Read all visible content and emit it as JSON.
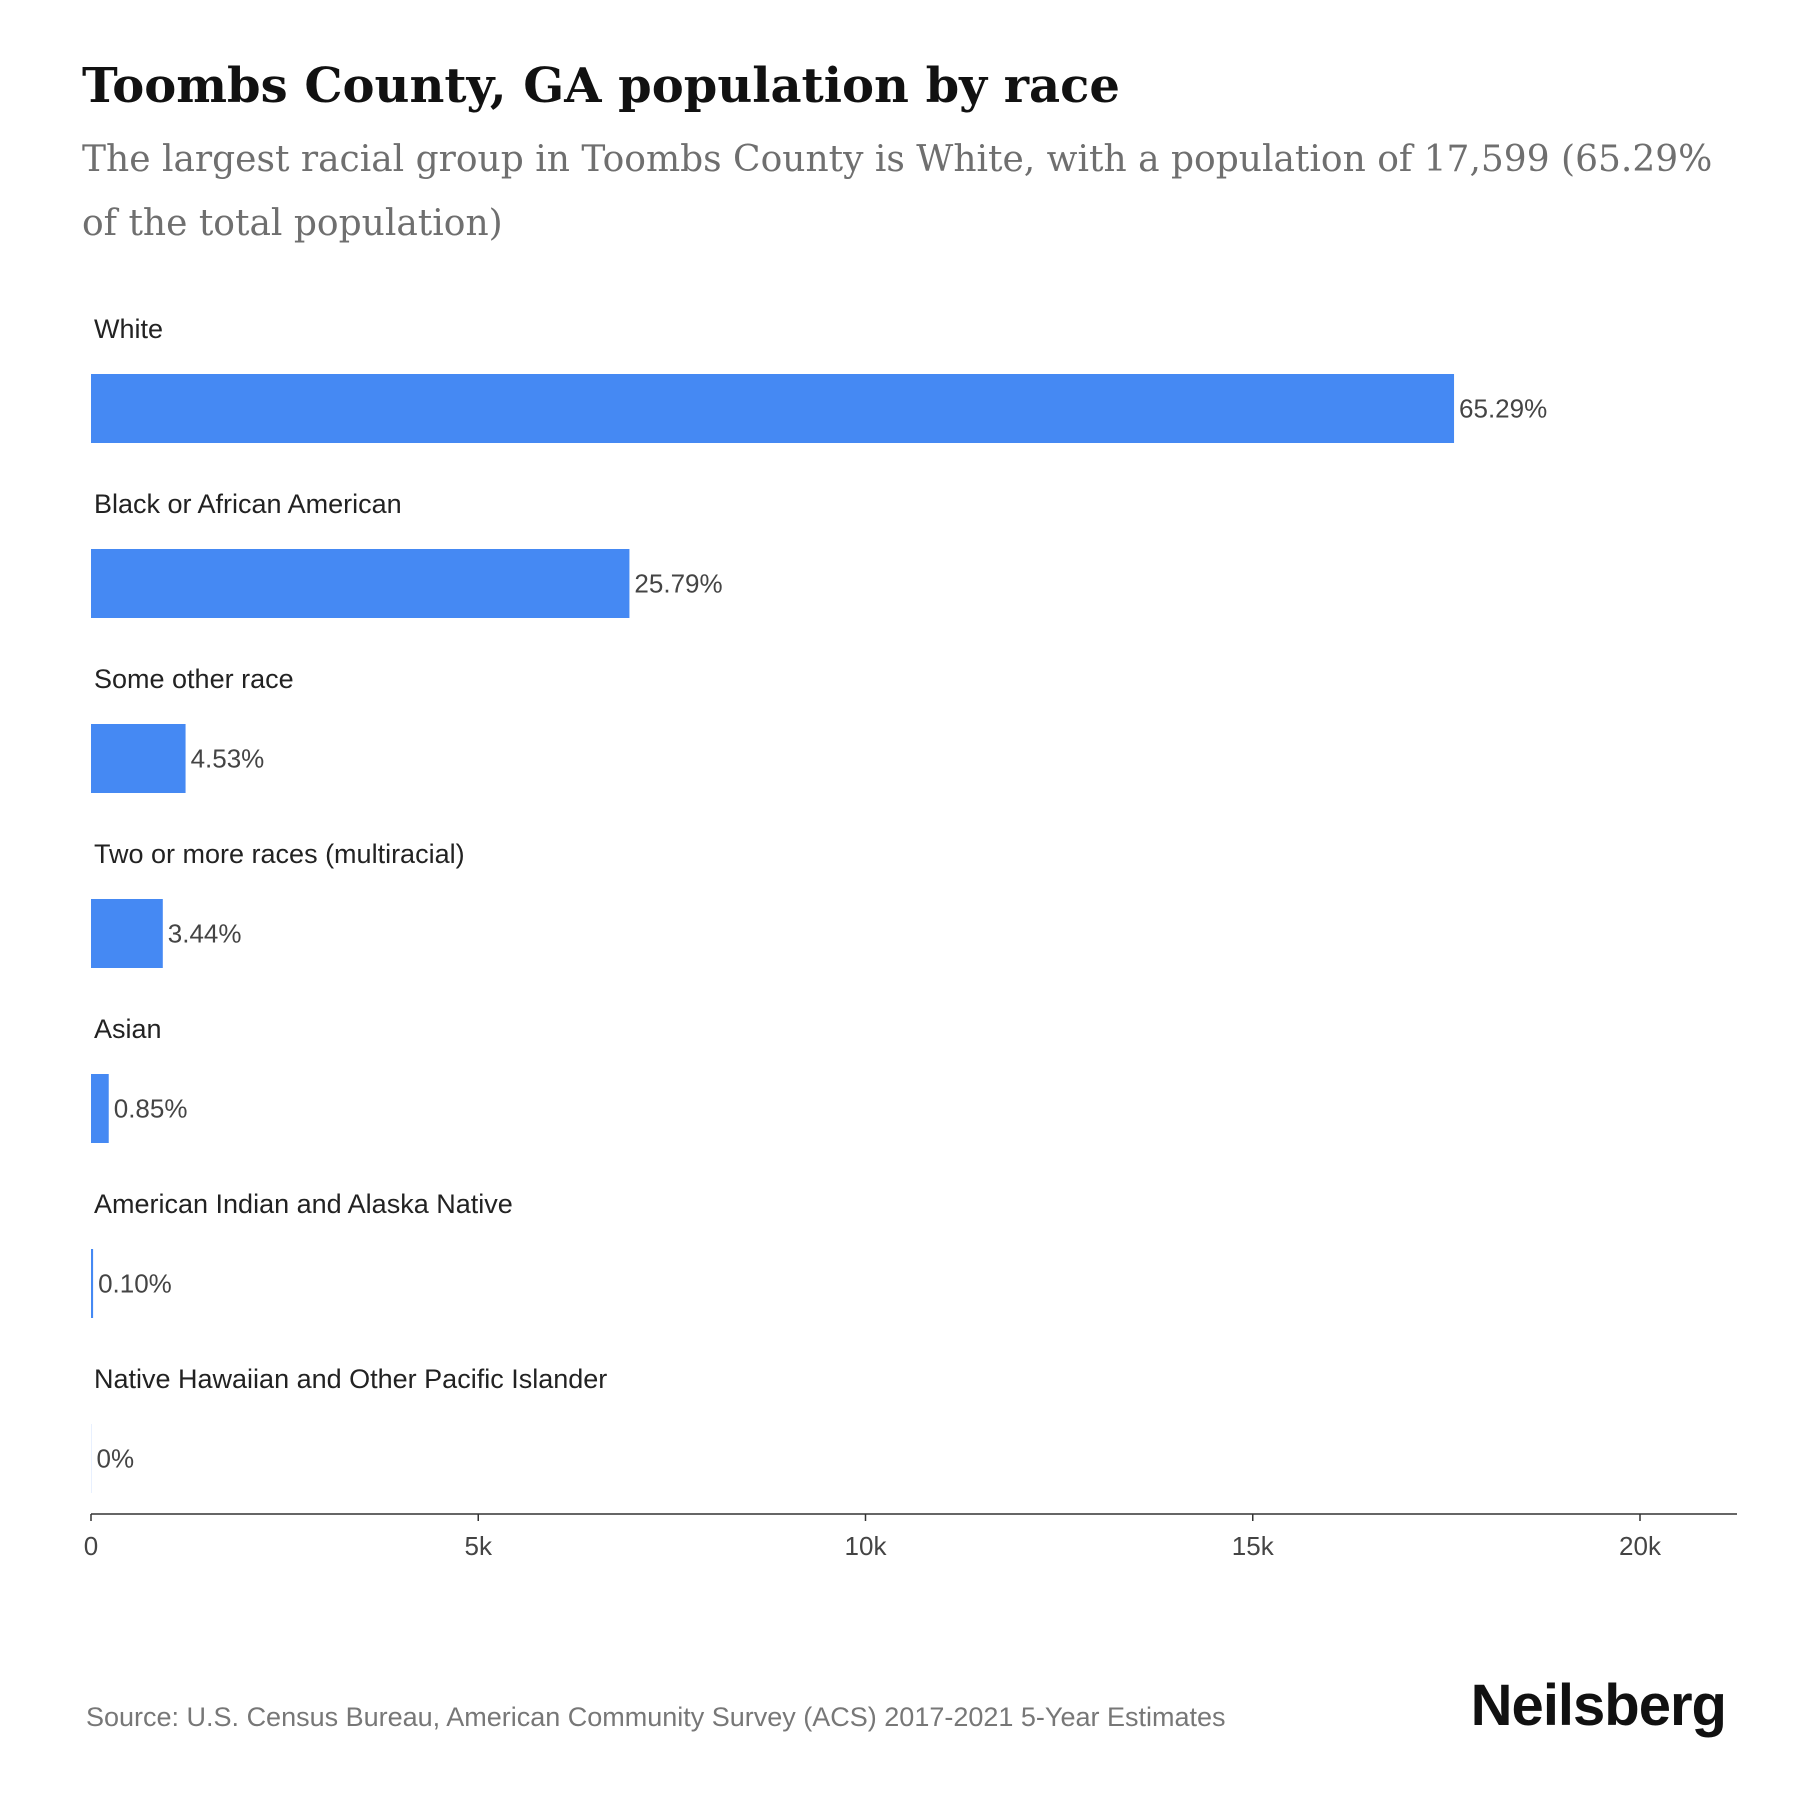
{
  "header": {
    "title": "Toombs County, GA population by race",
    "subtitle": "The largest racial group in Toombs County is White, with a population of 17,599 (65.29% of the total population)"
  },
  "footer": {
    "source": "Source: U.S. Census Bureau, American Community Survey (ACS) 2017-2021 5-Year Estimates",
    "brand": "Neilsberg"
  },
  "colors": {
    "bar": "#4589f3",
    "axis": "#333333"
  },
  "chart_data": {
    "type": "bar",
    "orientation": "horizontal",
    "categories": [
      "White",
      "Black or African American",
      "Some other race",
      "Two or more races (multiracial)",
      "Asian",
      "American Indian and Alaska Native",
      "Native Hawaiian and Other Pacific Islander"
    ],
    "values": [
      17599,
      6952,
      1221,
      927,
      229,
      27,
      0
    ],
    "data_labels": [
      "65.29%",
      "25.79%",
      "4.53%",
      "3.44%",
      "0.85%",
      "0.10%",
      "0%"
    ],
    "x_ticks": [
      0,
      5000,
      10000,
      15000,
      20000
    ],
    "x_tick_labels": [
      "0",
      "5k",
      "10k",
      "15k",
      "20k"
    ],
    "xlim": [
      0,
      21100
    ],
    "grid": false,
    "legend": "none"
  }
}
